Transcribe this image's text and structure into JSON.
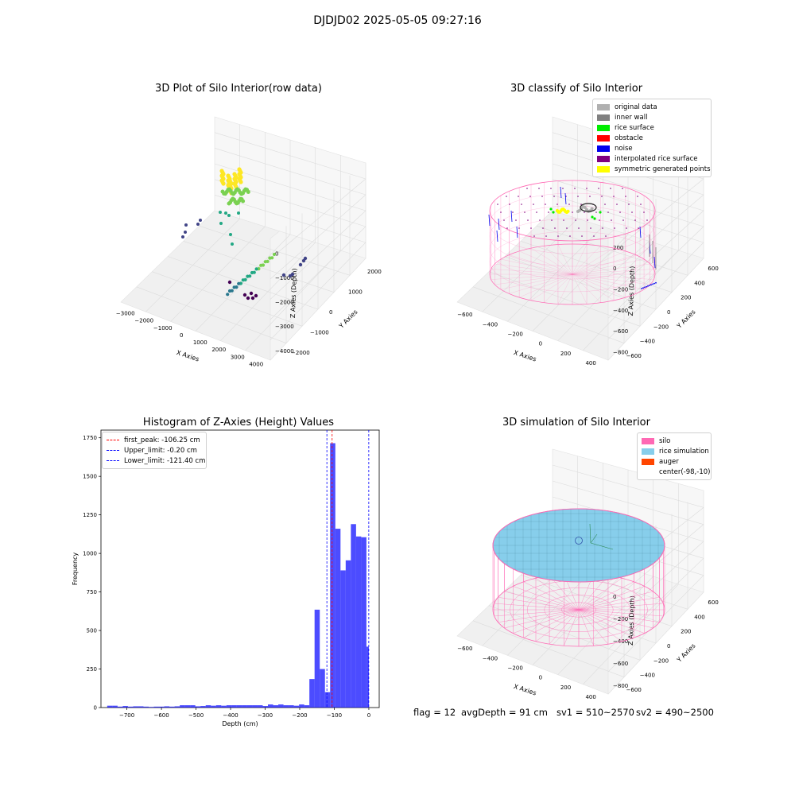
{
  "figure": {
    "suptitle": "DJDJD02 2025-05-05 09:27:16",
    "footer": {
      "flag": "flag = 12",
      "avg_depth": "avgDepth = 91 cm",
      "sv1": "sv1 = 510~2570",
      "sv2": "sv2 = 490~2500"
    }
  },
  "chart_data": [
    {
      "type": "scatter",
      "title": "3D Plot of Silo Interior(row data)",
      "xlabel": "X Axies",
      "ylabel": "Y Axies",
      "zlabel": "Z Axies (Depth)",
      "x_ticks": [
        "−3000",
        "−2000",
        "−1000",
        "0",
        "1000",
        "2000",
        "3000",
        "4000"
      ],
      "y_ticks": [
        "−2000",
        "−1000",
        "0",
        "1000",
        "2000"
      ],
      "z_ticks": [
        "0",
        "−1000",
        "−2000",
        "−3000",
        "−4000"
      ],
      "colormap": "viridis",
      "colors": [
        "#fde725",
        "#7ad151",
        "#22a884",
        "#2a788e",
        "#414487",
        "#440154"
      ]
    },
    {
      "type": "scatter",
      "title": "3D classify of Silo Interior",
      "xlabel": "X Axies",
      "ylabel": "Y Axies",
      "zlabel": "Z Axies (Depth)",
      "x_ticks": [
        "−600",
        "−400",
        "−200",
        "0",
        "200",
        "400"
      ],
      "y_ticks": [
        "−600",
        "−400",
        "−200",
        "0",
        "200",
        "400",
        "600"
      ],
      "z_ticks": [
        "200",
        "0",
        "−200",
        "−400",
        "−600",
        "−800"
      ],
      "legend": [
        {
          "label": "original data",
          "color": "#b0b0b0"
        },
        {
          "label": "inner wall",
          "color": "#808080"
        },
        {
          "label": "rice surface",
          "color": "#00ee00"
        },
        {
          "label": "obstacle",
          "color": "#ff0000"
        },
        {
          "label": "noise",
          "color": "#0000ee"
        },
        {
          "label": "interpolated rice surface",
          "color": "#800080"
        },
        {
          "label": "symmetric generated points",
          "color": "#ffff00"
        }
      ],
      "legend_loc": "upper right",
      "silo_color": "#ff69b4"
    },
    {
      "type": "bar",
      "title": "Histogram of Z-Axies (Height) Values",
      "xlabel": "Depth (cm)",
      "ylabel": "Frequency",
      "xlim": [
        -775,
        30
      ],
      "ylim": [
        0,
        1800
      ],
      "x_ticks": [
        -700,
        -600,
        -500,
        -400,
        -300,
        -200,
        -100,
        0
      ],
      "x_tick_labels": [
        "−700",
        "−600",
        "−500",
        "−400",
        "−300",
        "−200",
        "−100",
        "0"
      ],
      "y_ticks": [
        0,
        250,
        500,
        750,
        1000,
        1250,
        1500,
        1750
      ],
      "bar_color": "#0000ff",
      "bins": [
        [
          -757,
          -742,
          12
        ],
        [
          -742,
          -727,
          12
        ],
        [
          -727,
          -712,
          6
        ],
        [
          -712,
          -697,
          10
        ],
        [
          -697,
          -682,
          6
        ],
        [
          -682,
          -667,
          8
        ],
        [
          -667,
          -652,
          8
        ],
        [
          -652,
          -637,
          6
        ],
        [
          -637,
          -622,
          4
        ],
        [
          -622,
          -607,
          6
        ],
        [
          -607,
          -592,
          6
        ],
        [
          -592,
          -577,
          8
        ],
        [
          -577,
          -562,
          6
        ],
        [
          -562,
          -547,
          8
        ],
        [
          -547,
          -532,
          15
        ],
        [
          -532,
          -517,
          15
        ],
        [
          -517,
          -502,
          15
        ],
        [
          -502,
          -487,
          8
        ],
        [
          -487,
          -472,
          10
        ],
        [
          -472,
          -457,
          15
        ],
        [
          -457,
          -442,
          12
        ],
        [
          -442,
          -427,
          15
        ],
        [
          -427,
          -412,
          12
        ],
        [
          -412,
          -397,
          15
        ],
        [
          -397,
          -382,
          15
        ],
        [
          -382,
          -367,
          15
        ],
        [
          -367,
          -352,
          15
        ],
        [
          -352,
          -337,
          15
        ],
        [
          -337,
          -322,
          15
        ],
        [
          -322,
          -307,
          15
        ],
        [
          -307,
          -292,
          10
        ],
        [
          -292,
          -277,
          20
        ],
        [
          -277,
          -262,
          15
        ],
        [
          -262,
          -247,
          20
        ],
        [
          -247,
          -232,
          15
        ],
        [
          -232,
          -217,
          15
        ],
        [
          -217,
          -202,
          12
        ],
        [
          -202,
          -187,
          20
        ],
        [
          -187,
          -172,
          15
        ],
        [
          -172,
          -157,
          185
        ],
        [
          -157,
          -142,
          635
        ],
        [
          -142,
          -127,
          250
        ],
        [
          -127,
          -112,
          100
        ],
        [
          -112,
          -97,
          1715
        ],
        [
          -97,
          -82,
          1160
        ],
        [
          -82,
          -67,
          890
        ],
        [
          -67,
          -52,
          955
        ],
        [
          -52,
          -37,
          1190
        ],
        [
          -37,
          -22,
          1110
        ],
        [
          -22,
          -7,
          1105
        ],
        [
          -7,
          0,
          395
        ]
      ],
      "vlines": [
        {
          "x": -106.25,
          "label": "first_peak: -106.25 cm",
          "color": "#ff0000"
        },
        {
          "x": -0.2,
          "label": "Upper_limit: -0.20 cm",
          "color": "#0000ff"
        },
        {
          "x": -121.4,
          "label": "Lower_limit: -121.40 cm",
          "color": "#0000ff"
        }
      ],
      "legend_loc": "upper left"
    },
    {
      "type": "other",
      "title": "3D simulation of Silo Interior",
      "xlabel": "X Axies",
      "ylabel": "Y Axies",
      "zlabel": "Z Axies (Depth)",
      "x_ticks": [
        "−600",
        "−400",
        "−200",
        "0",
        "200",
        "400"
      ],
      "y_ticks": [
        "−600",
        "−400",
        "−200",
        "0",
        "200",
        "400",
        "600"
      ],
      "z_ticks": [
        "200",
        "0",
        "−200",
        "−400",
        "−600",
        "−800"
      ],
      "legend": [
        {
          "label": "silo",
          "color": "#ff69b4"
        },
        {
          "label": "rice simulation",
          "color": "#87ceeb"
        },
        {
          "label": "auger",
          "color": "#ff4500"
        },
        {
          "label": "center(-98,-10)",
          "color": ""
        }
      ],
      "legend_loc": "upper right"
    }
  ]
}
